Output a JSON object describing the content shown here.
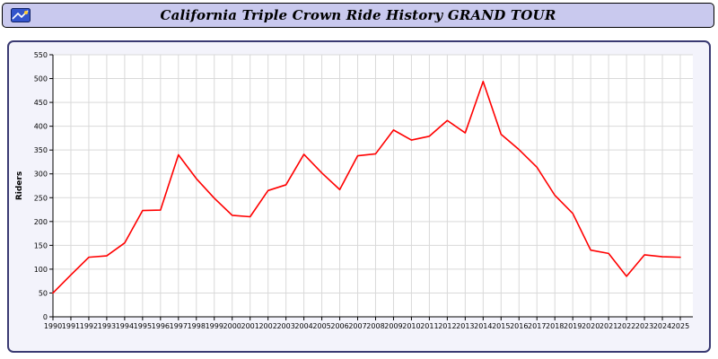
{
  "header": {
    "title": "California Triple Crown Ride History GRAND TOUR"
  },
  "colors": {
    "header_bg": "#c9c9ee",
    "panel_bg": "#f3f3fb",
    "panel_border": "#3a3a72",
    "grid": "#d9d9d9",
    "axis": "#000000",
    "line": "#ff0000"
  },
  "chart_data": {
    "type": "line",
    "title": "California Triple Crown Ride History GRAND TOUR",
    "xlabel": "",
    "ylabel": "Riders",
    "ylim": [
      0,
      550
    ],
    "ytick_step": 50,
    "grid": true,
    "legend": "none",
    "line_color": "#ff0000",
    "categories": [
      "1990",
      "1991",
      "1992",
      "1993",
      "1994",
      "1995",
      "1996",
      "1997",
      "1998",
      "1999",
      "2000",
      "2001",
      "2002",
      "2003",
      "2004",
      "2005",
      "2006",
      "2007",
      "2008",
      "2009",
      "2010",
      "2011",
      "2012",
      "2013",
      "2014",
      "2015",
      "2016",
      "2017",
      "2018",
      "2019",
      "2020",
      "2021",
      "2022",
      "2023",
      "2024",
      "2025"
    ],
    "series": [
      {
        "name": "Riders",
        "values": [
          50,
          88,
          125,
          128,
          155,
          223,
          224,
          340,
          290,
          249,
          213,
          210,
          265,
          277,
          341,
          302,
          267,
          338,
          342,
          392,
          371,
          379,
          412,
          386,
          494,
          383,
          351,
          314,
          255,
          217,
          140,
          133,
          85,
          130,
          126,
          125
        ]
      }
    ]
  }
}
